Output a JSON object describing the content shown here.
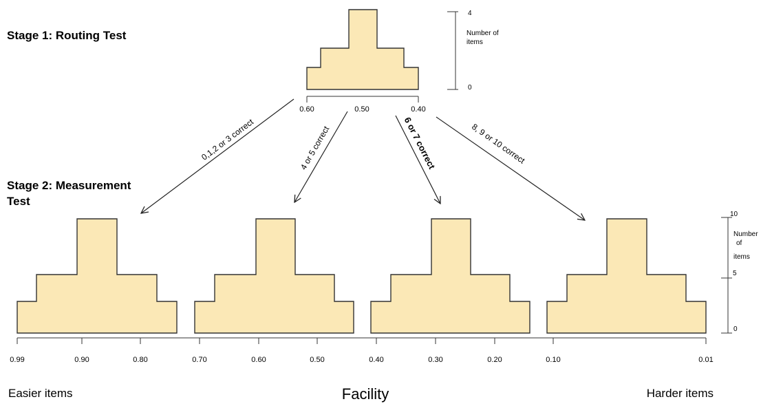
{
  "stage1_label": "Stage 1: Routing Test",
  "stage2_label_line1": "Stage 2: Measurement",
  "stage2_label_line2": "Test",
  "routing": {
    "axis_labels": [
      "0.60",
      "0.50",
      "0.40"
    ],
    "scale_labels": {
      "top": "4",
      "bottom": "0"
    },
    "scale_title_line1": "Number of",
    "scale_title_line2": "items",
    "histogram_counts": [
      1,
      2,
      4,
      2,
      1
    ]
  },
  "measurement": {
    "histogram_counts": [
      2.5,
      5,
      10,
      5,
      2.5
    ],
    "scale_labels": {
      "top": "10",
      "mid": "5",
      "bottom": "0"
    },
    "scale_title_line1": "Number",
    "scale_title_line2": "of",
    "scale_title_line3": "items",
    "axis_labels": [
      "0.99",
      "0.90",
      "0.80",
      "0.70",
      "0.60",
      "0.50",
      "0.40",
      "0.30",
      "0.20",
      "0.10",
      "0.01"
    ]
  },
  "routes": [
    {
      "label": "0,1,2 or 3 correct"
    },
    {
      "label": "4 or 5 correct"
    },
    {
      "label": "6 or 7 correct"
    },
    {
      "label": "8, 9 or 10 correct"
    }
  ],
  "footer": {
    "left": "Easier items",
    "center": "Facility",
    "right": "Harder items"
  },
  "colors": {
    "fill": "#fbe8b6",
    "stroke": "#333333"
  }
}
